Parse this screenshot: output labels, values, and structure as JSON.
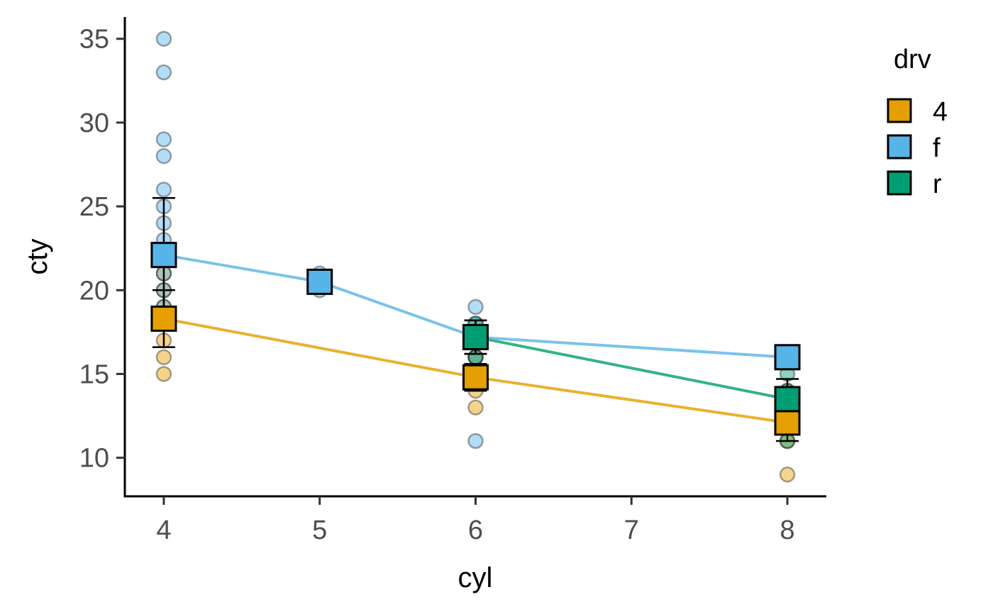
{
  "chart_data": {
    "type": "scatter",
    "xlabel": "cyl",
    "ylabel": "cty",
    "xlim": [
      3.75,
      8.25
    ],
    "ylim": [
      7.7,
      36.3
    ],
    "x_ticks": [
      4,
      5,
      6,
      7,
      8
    ],
    "y_ticks": [
      10,
      15,
      20,
      25,
      30,
      35
    ],
    "grid": false,
    "legend": {
      "title": "drv",
      "position": "right",
      "entries": [
        {
          "label": "4",
          "color": "#E69F00"
        },
        {
          "label": "f",
          "color": "#56B4E9"
        },
        {
          "label": "r",
          "color": "#009E73"
        }
      ]
    },
    "series": [
      {
        "name": "4",
        "color": "#E69F00",
        "line_color": "#E8B22F",
        "points": [
          {
            "x": 4,
            "y": 15
          },
          {
            "x": 4,
            "y": 16
          },
          {
            "x": 4,
            "y": 17
          },
          {
            "x": 4,
            "y": 18
          },
          {
            "x": 4,
            "y": 19
          },
          {
            "x": 4,
            "y": 20
          },
          {
            "x": 4,
            "y": 21
          },
          {
            "x": 6,
            "y": 13
          },
          {
            "x": 6,
            "y": 14
          },
          {
            "x": 6,
            "y": 15
          },
          {
            "x": 6,
            "y": 16
          },
          {
            "x": 6,
            "y": 17
          },
          {
            "x": 8,
            "y": 9
          },
          {
            "x": 8,
            "y": 11
          },
          {
            "x": 8,
            "y": 12
          },
          {
            "x": 8,
            "y": 13
          },
          {
            "x": 8,
            "y": 14
          }
        ],
        "means": [
          {
            "x": 4,
            "y": 18.3,
            "err_low": 16.6,
            "err_high": 20.0
          },
          {
            "x": 6,
            "y": 14.8,
            "err_low": 14.0,
            "err_high": 15.6
          },
          {
            "x": 8,
            "y": 12.1,
            "err_low": 11.0,
            "err_high": 13.2
          }
        ]
      },
      {
        "name": "f",
        "color": "#56B4E9",
        "line_color": "#7AC3EA",
        "points": [
          {
            "x": 4,
            "y": 35
          },
          {
            "x": 4,
            "y": 33
          },
          {
            "x": 4,
            "y": 29
          },
          {
            "x": 4,
            "y": 28
          },
          {
            "x": 4,
            "y": 26
          },
          {
            "x": 4,
            "y": 25
          },
          {
            "x": 4,
            "y": 24
          },
          {
            "x": 4,
            "y": 23
          },
          {
            "x": 4,
            "y": 22
          },
          {
            "x": 4,
            "y": 21
          },
          {
            "x": 4,
            "y": 20
          },
          {
            "x": 4,
            "y": 19
          },
          {
            "x": 4,
            "y": 18
          },
          {
            "x": 5,
            "y": 20
          },
          {
            "x": 5,
            "y": 21
          },
          {
            "x": 6,
            "y": 19
          },
          {
            "x": 6,
            "y": 18
          },
          {
            "x": 6,
            "y": 17
          },
          {
            "x": 6,
            "y": 16
          },
          {
            "x": 6,
            "y": 11
          },
          {
            "x": 8,
            "y": 16
          }
        ],
        "means": [
          {
            "x": 4,
            "y": 22.1,
            "err_low": 18.7,
            "err_high": 25.5
          },
          {
            "x": 5,
            "y": 20.5,
            "err_low": 20.0,
            "err_high": 21.0
          },
          {
            "x": 6,
            "y": 17.2,
            "err_low": 16.2,
            "err_high": 18.2
          },
          {
            "x": 8,
            "y": 16.0,
            "err_low": 16.0,
            "err_high": 16.0
          }
        ]
      },
      {
        "name": "r",
        "color": "#009E73",
        "line_color": "#35B28A",
        "points": [
          {
            "x": 6,
            "y": 18
          },
          {
            "x": 6,
            "y": 17
          },
          {
            "x": 6,
            "y": 16
          },
          {
            "x": 6,
            "y": 15
          },
          {
            "x": 8,
            "y": 15
          },
          {
            "x": 8,
            "y": 14
          },
          {
            "x": 8,
            "y": 13
          },
          {
            "x": 8,
            "y": 12
          },
          {
            "x": 8,
            "y": 11
          }
        ],
        "means": [
          {
            "x": 6,
            "y": 17.2,
            "err_low": 16.2,
            "err_high": 18.2
          },
          {
            "x": 8,
            "y": 13.5,
            "err_low": 12.3,
            "err_high": 14.7
          }
        ]
      }
    ]
  }
}
